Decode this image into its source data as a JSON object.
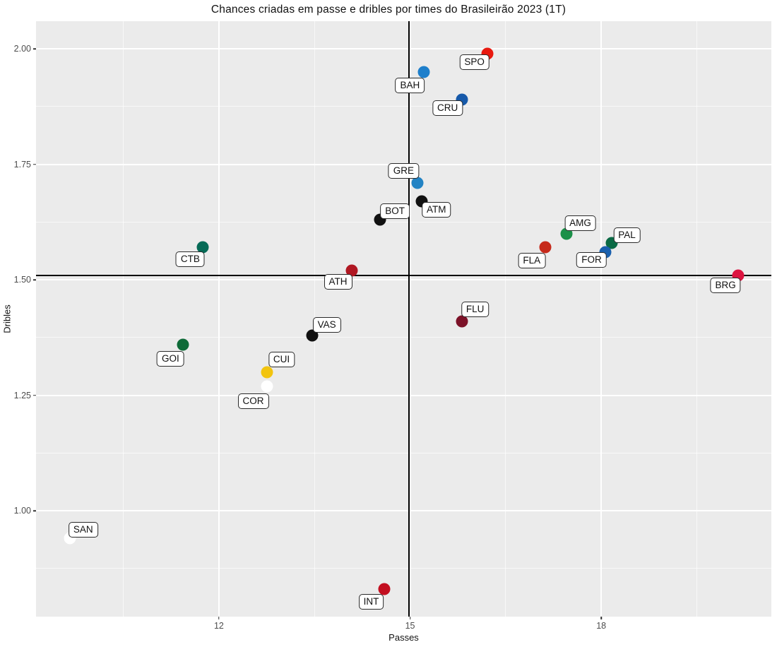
{
  "chart_data": {
    "type": "scatter",
    "title": "Chances criadas em passe e dribles por times do Brasileirão 2023 (1T)",
    "xlabel": "Passes",
    "ylabel": "Dribles",
    "x_domain": [
      9.13,
      20.67
    ],
    "y_domain": [
      0.771,
      2.06
    ],
    "x_ticks": {
      "values": [
        12,
        15,
        18
      ],
      "labels": [
        "12",
        "15",
        "18"
      ]
    },
    "y_ticks": {
      "values": [
        1.0,
        1.25,
        1.5,
        1.75,
        2.0
      ],
      "labels": [
        "1.00",
        "1.25",
        "1.50",
        "1.75",
        "2.00"
      ]
    },
    "x_minor": [
      10.5,
      13.5,
      16.5,
      19.5
    ],
    "y_minor": [
      0.875,
      1.125,
      1.375,
      1.625,
      1.875
    ],
    "reference_lines": {
      "vline_x": 14.98,
      "hline_y": 1.51
    },
    "grid": true,
    "legend": false,
    "panel_bg": "#EBEBEB",
    "points": [
      {
        "team": "SPO",
        "x": 16.21,
        "y": 1.99,
        "color": "#E8190F",
        "label_offset": [
          -18,
          12
        ]
      },
      {
        "team": "BAH",
        "x": 15.22,
        "y": 1.95,
        "color": "#1E7FCB",
        "label_offset": [
          -20,
          19
        ]
      },
      {
        "team": "CRU",
        "x": 15.81,
        "y": 1.89,
        "color": "#1659A9",
        "label_offset": [
          -20,
          12
        ]
      },
      {
        "team": "GRE",
        "x": 15.12,
        "y": 1.71,
        "color": "#2383C4",
        "label_offset": [
          -20,
          -17
        ]
      },
      {
        "team": "ATM",
        "x": 15.18,
        "y": 1.67,
        "color": "#111111",
        "label_offset": [
          21,
          12
        ]
      },
      {
        "team": "BOT",
        "x": 14.53,
        "y": 1.63,
        "color": "#111111",
        "label_offset": [
          21,
          -12
        ]
      },
      {
        "team": "AMG",
        "x": 17.45,
        "y": 1.6,
        "color": "#1B9048",
        "label_offset": [
          20,
          -15
        ]
      },
      {
        "team": "PAL",
        "x": 18.16,
        "y": 1.58,
        "color": "#0A6A45",
        "label_offset": [
          22,
          -11
        ]
      },
      {
        "team": "FLA",
        "x": 17.12,
        "y": 1.57,
        "color": "#C62A1B",
        "label_offset": [
          -19,
          19
        ]
      },
      {
        "team": "FOR",
        "x": 18.07,
        "y": 1.56,
        "color": "#1A60AE",
        "label_offset": [
          -20,
          11
        ]
      },
      {
        "team": "CTB",
        "x": 11.75,
        "y": 1.57,
        "color": "#056A56",
        "label_offset": [
          -18,
          17
        ]
      },
      {
        "team": "ATH",
        "x": 14.08,
        "y": 1.52,
        "color": "#B01722",
        "label_offset": [
          -19,
          16
        ]
      },
      {
        "team": "BRG",
        "x": 20.15,
        "y": 1.51,
        "color": "#DC1440",
        "label_offset": [
          -18,
          14
        ]
      },
      {
        "team": "FLU",
        "x": 15.81,
        "y": 1.41,
        "color": "#7C1228",
        "label_offset": [
          19,
          -17
        ]
      },
      {
        "team": "VAS",
        "x": 13.46,
        "y": 1.38,
        "color": "#111111",
        "label_offset": [
          21,
          -15
        ]
      },
      {
        "team": "GOI",
        "x": 11.44,
        "y": 1.36,
        "color": "#0E6B38",
        "label_offset": [
          -18,
          20
        ]
      },
      {
        "team": "CUI",
        "x": 12.75,
        "y": 1.3,
        "color": "#F2C40F",
        "label_offset": [
          21,
          -18
        ]
      },
      {
        "team": "COR",
        "x": 12.75,
        "y": 1.27,
        "color": "#FFFFFF",
        "label_offset": [
          -19,
          21
        ]
      },
      {
        "team": "SAN",
        "x": 9.66,
        "y": 0.94,
        "color": "#FFFFFF",
        "label_offset": [
          19,
          -12
        ]
      },
      {
        "team": "INT",
        "x": 14.59,
        "y": 0.83,
        "color": "#C30F20",
        "label_offset": [
          -18,
          18
        ]
      }
    ]
  }
}
